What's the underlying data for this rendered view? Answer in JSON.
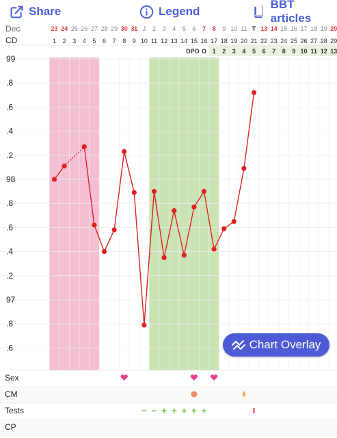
{
  "toolbar": {
    "share_label": "Share",
    "legend_label": "Legend",
    "bbt_label": "BBT articles",
    "accent_color": "#4a5fd6"
  },
  "header": {
    "month_label": "Dec",
    "cd_label": "CD",
    "dates": [
      "23",
      "24",
      "25",
      "26",
      "27",
      "28",
      "29",
      "30",
      "31",
      "J",
      "2",
      "3",
      "4",
      "5",
      "6",
      "7",
      "8",
      "9",
      "10",
      "11",
      "T",
      "13",
      "14",
      "15",
      "16",
      "17",
      "18",
      "19",
      "20"
    ],
    "weekend_dates": [
      0,
      1,
      7,
      8,
      15,
      16,
      21,
      22,
      28
    ],
    "today_index": 20,
    "cycle_days": [
      "1",
      "2",
      "3",
      "4",
      "5",
      "6",
      "7",
      "8",
      "9",
      "10",
      "11",
      "12",
      "13",
      "14",
      "15",
      "16",
      "17",
      "18",
      "19",
      "20",
      "21",
      "22",
      "23",
      "24",
      "25",
      "26",
      "27",
      "28",
      "29"
    ],
    "dpo_label": "DPO",
    "dpo_values": [
      "O",
      "1",
      "2",
      "3",
      "4",
      "5",
      "6",
      "7",
      "8",
      "9",
      "10",
      "11",
      "12",
      "13"
    ]
  },
  "chart_data": {
    "type": "line",
    "ylabels": [
      "99",
      ".8",
      ".6",
      ".4",
      ".2",
      "98",
      ".8",
      ".6",
      ".4",
      ".2",
      "97",
      ".8",
      ".6"
    ],
    "ylim": [
      96.5,
      99.0
    ],
    "x": [
      1,
      2,
      4,
      5,
      6,
      7,
      8,
      9,
      10,
      11,
      12,
      13,
      14,
      15,
      16,
      17,
      18,
      19,
      20,
      21,
      22
    ],
    "temperatures": [
      98.0,
      98.11,
      98.27,
      97.62,
      97.4,
      97.58,
      98.23,
      97.89,
      96.79,
      97.9,
      97.35,
      97.74,
      97.37,
      97.77,
      97.9,
      97.42,
      97.59,
      97.65,
      98.09,
      98.72
    ],
    "temp_days": [
      1,
      2,
      4,
      5,
      6,
      7,
      8,
      9,
      10,
      11,
      12,
      13,
      14,
      15,
      16,
      17,
      18,
      19,
      20,
      21
    ],
    "dotted_segment": [
      2,
      4
    ],
    "period_days": [
      1,
      5
    ],
    "fertile_days": [
      11,
      17
    ],
    "line_color": "#e02020",
    "period_color": "#f4bfd3",
    "fertile_color": "#c9e3b3"
  },
  "rows": {
    "sex_label": "Sex",
    "cm_label": "CM",
    "tests_label": "Tests",
    "cp_label": "CP",
    "sex_days": [
      8,
      15,
      17
    ],
    "cm_days": [
      15,
      20
    ],
    "tests": [
      {
        "day": 10,
        "sign": "−"
      },
      {
        "day": 11,
        "sign": "−"
      },
      {
        "day": 12,
        "sign": "+"
      },
      {
        "day": 13,
        "sign": "+"
      },
      {
        "day": 14,
        "sign": "+"
      },
      {
        "day": 15,
        "sign": "+"
      },
      {
        "day": 16,
        "sign": "+"
      }
    ],
    "tests_mark_day": 21
  },
  "overlay": {
    "label": "Chart Overlay"
  }
}
